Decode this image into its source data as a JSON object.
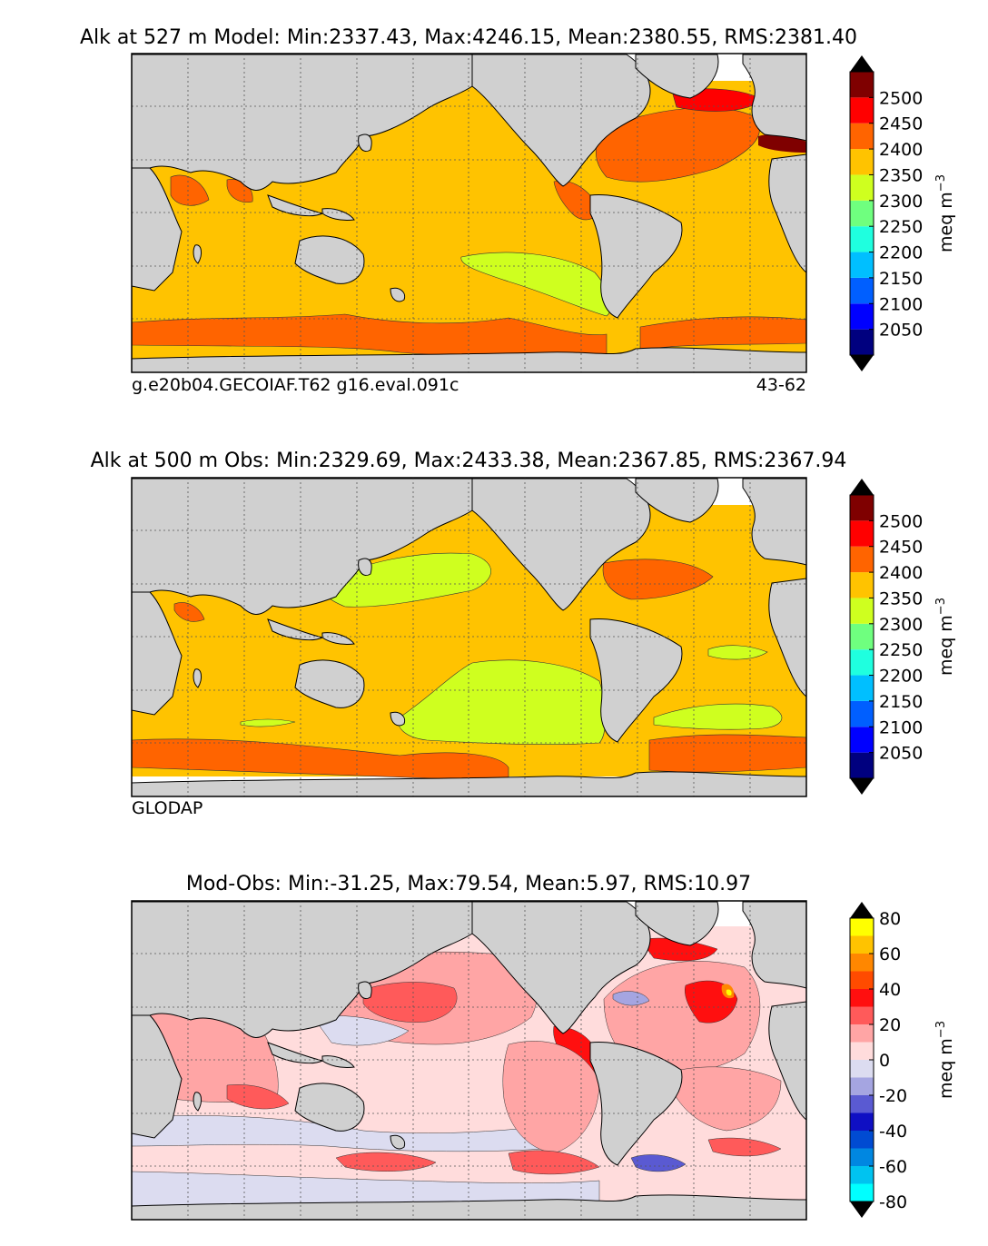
{
  "chart_data": [
    {
      "type": "heatmap",
      "title": "Alk at 527 m Model: Min:2337.43, Max:4246.15, Mean:2380.55, RMS:2381.40",
      "footer_left": "g.e20b04.GECOIAF.T62 g16.eval.091c",
      "footer_right": "43-62",
      "colorbar": {
        "label": "meq m",
        "label_superscript": "−3",
        "levels": [
          2000,
          2050,
          2100,
          2150,
          2200,
          2250,
          2300,
          2350,
          2400,
          2450,
          2500,
          2550
        ],
        "tick_labels": [
          "2050",
          "2100",
          "2150",
          "2200",
          "2250",
          "2300",
          "2350",
          "2400",
          "2450",
          "2500"
        ],
        "colors": [
          "#00007f",
          "#0000ff",
          "#005fff",
          "#00bfff",
          "#1fffdf",
          "#6fff7f",
          "#cfff1f",
          "#ffc300",
          "#ff6400",
          "#ff0000",
          "#7f0000"
        ],
        "extend": "both",
        "under_color": "#000000",
        "over_color": "#000000"
      },
      "background_level": 2375
    },
    {
      "type": "heatmap",
      "title": "Alk at 500 m Obs: Min:2329.69, Max:2433.38, Mean:2367.85, RMS:2367.94",
      "footer_left": "GLODAP",
      "colorbar": {
        "label": "meq m",
        "label_superscript": "−3",
        "levels": [
          2000,
          2050,
          2100,
          2150,
          2200,
          2250,
          2300,
          2350,
          2400,
          2450,
          2500,
          2550
        ],
        "tick_labels": [
          "2050",
          "2100",
          "2150",
          "2200",
          "2250",
          "2300",
          "2350",
          "2400",
          "2450",
          "2500"
        ],
        "colors": [
          "#00007f",
          "#0000ff",
          "#005fff",
          "#00bfff",
          "#1fffdf",
          "#6fff7f",
          "#cfff1f",
          "#ffc300",
          "#ff6400",
          "#ff0000",
          "#7f0000"
        ],
        "extend": "both",
        "under_color": "#000000",
        "over_color": "#000000"
      },
      "background_level": 2375
    },
    {
      "type": "heatmap",
      "title": "Mod-Obs: Min:-31.25, Max:79.54, Mean:5.97, RMS:10.97",
      "colorbar": {
        "label": "meq m",
        "label_superscript": "−3",
        "levels": [
          -80,
          -70,
          -60,
          -50,
          -40,
          -30,
          -20,
          -10,
          0,
          10,
          20,
          30,
          40,
          50,
          60,
          70,
          80
        ],
        "tick_labels": [
          "-80",
          "-60",
          "-40",
          "-20",
          "0",
          "20",
          "40",
          "60",
          "80"
        ],
        "colors": [
          "#00ffff",
          "#00c3f0",
          "#0087e1",
          "#004bd2",
          "#0f0fc3",
          "#5a5ad2",
          "#a5a5e1",
          "#dcdcf0",
          "#ffdcdc",
          "#ffa5a5",
          "#ff5a5a",
          "#ff0f0f",
          "#ff4b00",
          "#ff8700",
          "#ffc300",
          "#ffff00"
        ],
        "extend": "both",
        "under_color": "#000000",
        "over_color": "#000000"
      },
      "background_level": 5
    }
  ]
}
